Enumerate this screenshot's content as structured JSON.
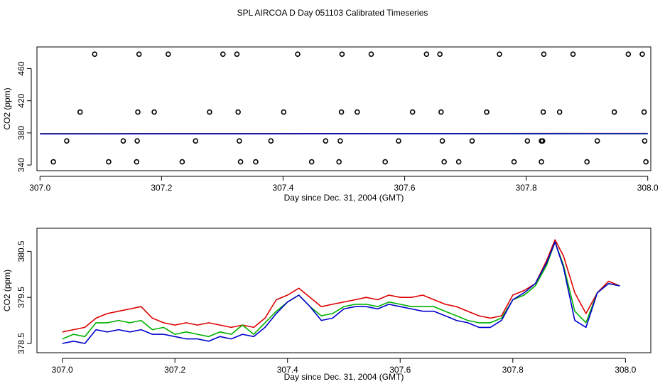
{
  "title": "SPL AIRCOA D  Day 051103  Calibrated Timeseries",
  "colors": {
    "red": "#dd0000",
    "green": "#00b000",
    "blue": "#0000cc",
    "axis": "#000000"
  },
  "chart_data": [
    {
      "type": "scatter",
      "xlabel": "Day since Dec. 31, 2004 (GMT)",
      "ylabel": "CO2 (ppm)",
      "xlim": [
        306.995,
        308.005
      ],
      "ylim": [
        333,
        487
      ],
      "xticks": [
        307.0,
        307.2,
        307.4,
        307.6,
        307.8,
        308.0
      ],
      "xtick_labels": [
        "307.0",
        "307.2",
        "307.4",
        "307.6",
        "307.8",
        "308.0"
      ],
      "yticks": [
        340,
        380,
        420,
        460
      ],
      "ytick_labels": [
        "340",
        "380",
        "420",
        "460"
      ],
      "points": {
        "x": [
          307.09,
          307.163,
          307.211,
          307.301,
          307.324,
          307.424,
          307.497,
          307.545,
          307.636,
          307.658,
          307.756,
          307.829,
          307.877,
          307.968,
          307.991,
          307.066,
          307.161,
          307.188,
          307.279,
          307.326,
          307.401,
          307.496,
          307.522,
          307.613,
          307.66,
          307.735,
          307.828,
          307.855,
          307.945,
          307.994,
          307.044,
          307.137,
          307.16,
          307.256,
          307.328,
          307.38,
          307.47,
          307.494,
          307.59,
          307.662,
          307.711,
          307.802,
          307.825,
          307.827,
          307.917,
          307.995,
          307.022,
          307.113,
          307.159,
          307.234,
          307.33,
          307.355,
          307.447,
          307.492,
          307.568,
          307.665,
          307.689,
          307.78,
          307.825,
          307.9,
          307.997
        ],
        "y": [
          478,
          478,
          478,
          478,
          478,
          478,
          478,
          478,
          478,
          478,
          478,
          478,
          478,
          478,
          478,
          406,
          406,
          406,
          406,
          406,
          406,
          406,
          406,
          406,
          406,
          406,
          406,
          406,
          406,
          406,
          370,
          370,
          370,
          370,
          370,
          370,
          370,
          370,
          370,
          370,
          370,
          370,
          370,
          370,
          370,
          370,
          344,
          344,
          344,
          344,
          344,
          344,
          344,
          344,
          344,
          344,
          344,
          344,
          344,
          344,
          344
        ]
      },
      "series": [
        {
          "name": "red",
          "x": [
            307.0,
            307.5,
            308.0
          ],
          "y": [
            379.1,
            379.2,
            379.3
          ]
        },
        {
          "name": "green",
          "x": [
            307.0,
            307.5,
            308.0
          ],
          "y": [
            378.9,
            379.0,
            379.1
          ]
        },
        {
          "name": "blue",
          "x": [
            307.0,
            307.5,
            308.0
          ],
          "y": [
            378.8,
            378.9,
            379.0
          ]
        }
      ]
    },
    {
      "type": "line",
      "xlabel": "Day since Dec. 31, 2004 (GMT)",
      "ylabel": "CO2 (ppm)",
      "xlim": [
        306.955,
        308.045
      ],
      "ylim": [
        378.3,
        381.0
      ],
      "xticks": [
        307.0,
        307.2,
        307.4,
        307.6,
        307.8,
        308.0
      ],
      "xtick_labels": [
        "307.0",
        "307.2",
        "307.4",
        "307.6",
        "307.8",
        "308.0"
      ],
      "yticks": [
        378.5,
        379.5,
        380.5
      ],
      "ytick_labels": [
        "378.5",
        "379.5",
        "380.5"
      ],
      "series": [
        {
          "name": "red",
          "x": [
            307.0,
            307.02,
            307.04,
            307.06,
            307.08,
            307.1,
            307.12,
            307.14,
            307.16,
            307.18,
            307.2,
            307.22,
            307.24,
            307.26,
            307.28,
            307.3,
            307.32,
            307.34,
            307.36,
            307.38,
            307.4,
            307.42,
            307.44,
            307.46,
            307.48,
            307.5,
            307.52,
            307.54,
            307.56,
            307.58,
            307.6,
            307.62,
            307.64,
            307.66,
            307.68,
            307.7,
            307.72,
            307.74,
            307.76,
            307.78,
            307.8,
            307.82,
            307.84,
            307.86,
            307.875,
            307.89,
            307.91,
            307.93,
            307.95,
            307.97,
            307.99
          ],
          "y": [
            378.75,
            378.8,
            378.85,
            379.05,
            379.15,
            379.2,
            379.25,
            379.3,
            379.05,
            378.95,
            378.9,
            378.95,
            378.9,
            378.95,
            378.9,
            378.85,
            378.9,
            378.85,
            379.05,
            379.45,
            379.55,
            379.7,
            379.5,
            379.3,
            379.35,
            379.4,
            379.45,
            379.5,
            379.45,
            379.55,
            379.5,
            379.5,
            379.55,
            379.45,
            379.35,
            379.3,
            379.2,
            379.1,
            379.05,
            379.1,
            379.55,
            379.65,
            379.8,
            380.3,
            380.75,
            380.4,
            379.6,
            379.15,
            379.6,
            379.85,
            379.75
          ]
        },
        {
          "name": "green",
          "x": [
            307.0,
            307.02,
            307.04,
            307.06,
            307.08,
            307.1,
            307.12,
            307.14,
            307.16,
            307.18,
            307.2,
            307.22,
            307.24,
            307.26,
            307.28,
            307.3,
            307.32,
            307.34,
            307.36,
            307.38,
            307.4,
            307.42,
            307.44,
            307.46,
            307.48,
            307.5,
            307.52,
            307.54,
            307.56,
            307.58,
            307.6,
            307.62,
            307.64,
            307.66,
            307.68,
            307.7,
            307.72,
            307.74,
            307.76,
            307.78,
            307.8,
            307.82,
            307.84,
            307.86,
            307.875,
            307.89,
            307.91,
            307.93,
            307.95,
            307.97,
            307.99
          ],
          "y": [
            378.6,
            378.7,
            378.65,
            378.95,
            378.95,
            379.0,
            378.95,
            379.0,
            378.8,
            378.85,
            378.7,
            378.75,
            378.7,
            378.65,
            378.75,
            378.7,
            378.9,
            378.7,
            378.95,
            379.2,
            379.4,
            379.55,
            379.3,
            379.1,
            379.15,
            379.3,
            379.35,
            379.35,
            379.3,
            379.4,
            379.35,
            379.3,
            379.3,
            379.3,
            379.2,
            379.1,
            379.0,
            378.95,
            378.95,
            379.05,
            379.45,
            379.55,
            379.75,
            380.2,
            380.7,
            380.2,
            379.2,
            378.95,
            379.6,
            379.8,
            379.75
          ]
        },
        {
          "name": "blue",
          "x": [
            307.0,
            307.02,
            307.04,
            307.06,
            307.08,
            307.1,
            307.12,
            307.14,
            307.16,
            307.18,
            307.2,
            307.22,
            307.24,
            307.26,
            307.28,
            307.3,
            307.32,
            307.34,
            307.36,
            307.38,
            307.4,
            307.42,
            307.44,
            307.46,
            307.48,
            307.5,
            307.52,
            307.54,
            307.56,
            307.58,
            307.6,
            307.62,
            307.64,
            307.66,
            307.68,
            307.7,
            307.72,
            307.74,
            307.76,
            307.78,
            307.8,
            307.82,
            307.84,
            307.86,
            307.875,
            307.89,
            307.91,
            307.93,
            307.95,
            307.97,
            307.99
          ],
          "y": [
            378.5,
            378.55,
            378.5,
            378.8,
            378.75,
            378.8,
            378.75,
            378.8,
            378.7,
            378.7,
            378.65,
            378.6,
            378.6,
            378.55,
            378.65,
            378.6,
            378.7,
            378.65,
            378.85,
            379.15,
            379.4,
            379.55,
            379.3,
            379.0,
            379.05,
            379.25,
            379.3,
            379.3,
            379.25,
            379.35,
            379.3,
            379.25,
            379.2,
            379.2,
            379.1,
            379.0,
            378.95,
            378.85,
            378.85,
            379.0,
            379.45,
            379.6,
            379.8,
            380.25,
            380.7,
            380.15,
            379.0,
            378.85,
            379.6,
            379.8,
            379.75
          ]
        }
      ]
    }
  ]
}
